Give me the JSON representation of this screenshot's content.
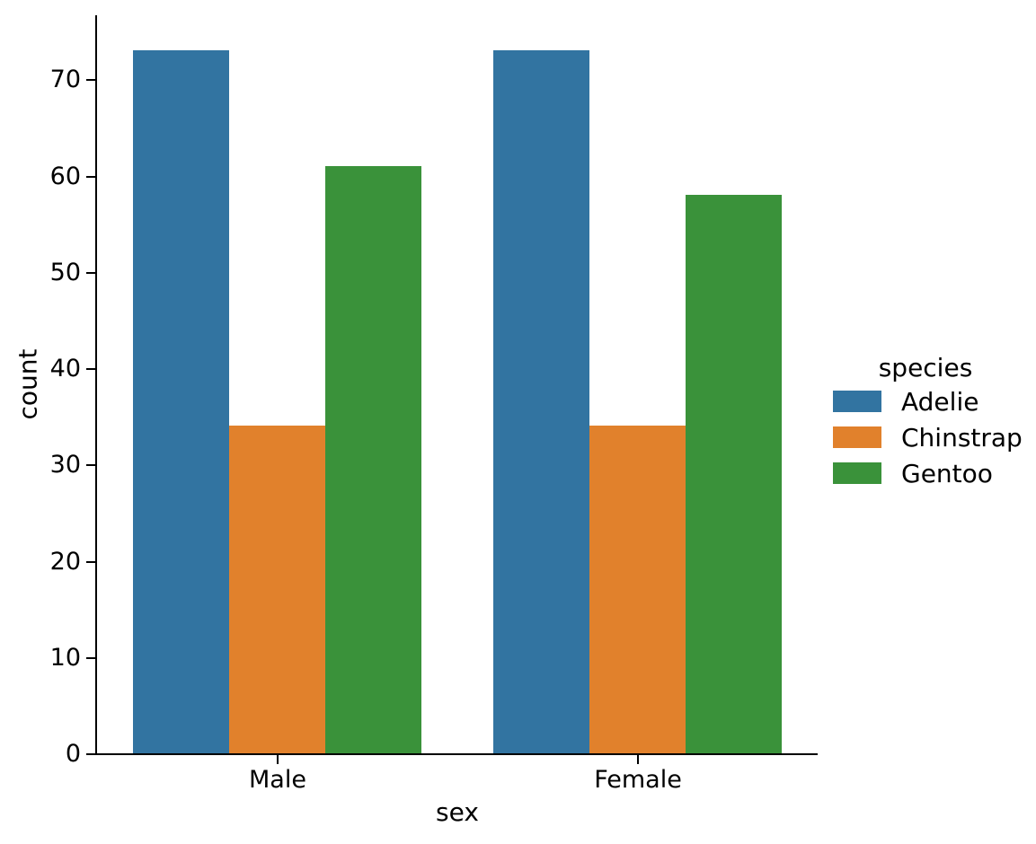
{
  "chart_data": {
    "type": "bar",
    "title": "",
    "xlabel": "sex",
    "ylabel": "count",
    "categories": [
      "Male",
      "Female"
    ],
    "series": [
      {
        "name": "Adelie",
        "color": "#3274a1",
        "values": [
          73,
          73
        ]
      },
      {
        "name": "Chinstrap",
        "color": "#e1812c",
        "values": [
          34,
          34
        ]
      },
      {
        "name": "Gentoo",
        "color": "#3a923a",
        "values": [
          61,
          58
        ]
      }
    ],
    "ylim": [
      0,
      76.65
    ],
    "yticks": [
      0,
      10,
      20,
      30,
      40,
      50,
      60,
      70
    ],
    "group_width_fraction": 0.8,
    "grid": false,
    "legend": {
      "title": "species",
      "position": "right"
    }
  },
  "colors": {
    "background": "#ffffff",
    "axis": "#000000",
    "text": "#000000"
  }
}
